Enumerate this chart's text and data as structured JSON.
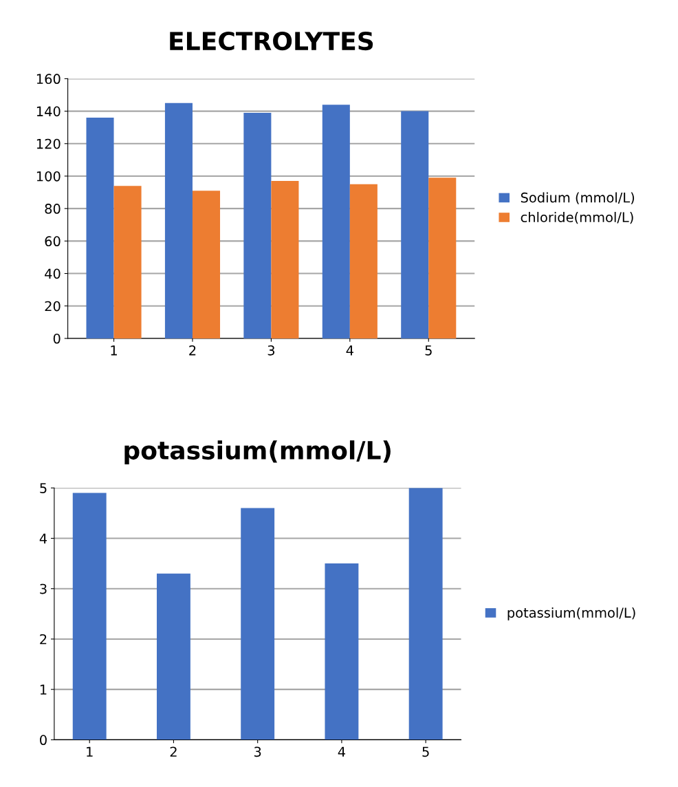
{
  "chart_data": [
    {
      "type": "bar",
      "title": "ELECTROLYTES",
      "categories": [
        "1",
        "2",
        "3",
        "4",
        "5"
      ],
      "series": [
        {
          "name": "Sodium (mmol/L)",
          "color": "#4472c4",
          "values": [
            136,
            145,
            139,
            144,
            140
          ]
        },
        {
          "name": "chloride(mmol/L)",
          "color": "#ed7d31",
          "values": [
            94,
            91,
            97,
            95,
            99
          ]
        }
      ],
      "ylim": [
        0,
        160
      ],
      "yticks": [
        0,
        20,
        40,
        60,
        80,
        100,
        120,
        140,
        160
      ],
      "grid": "y",
      "legend": "right"
    },
    {
      "type": "bar",
      "title": "potassium(mmol/L)",
      "categories": [
        "1",
        "2",
        "3",
        "4",
        "5"
      ],
      "series": [
        {
          "name": "potassium(mmol/L)",
          "color": "#4472c4",
          "values": [
            4.9,
            3.3,
            4.6,
            3.5,
            5.0
          ]
        }
      ],
      "ylim": [
        0,
        5
      ],
      "yticks": [
        0,
        1,
        2,
        3,
        4,
        5
      ],
      "grid": "y",
      "legend": "right"
    }
  ]
}
